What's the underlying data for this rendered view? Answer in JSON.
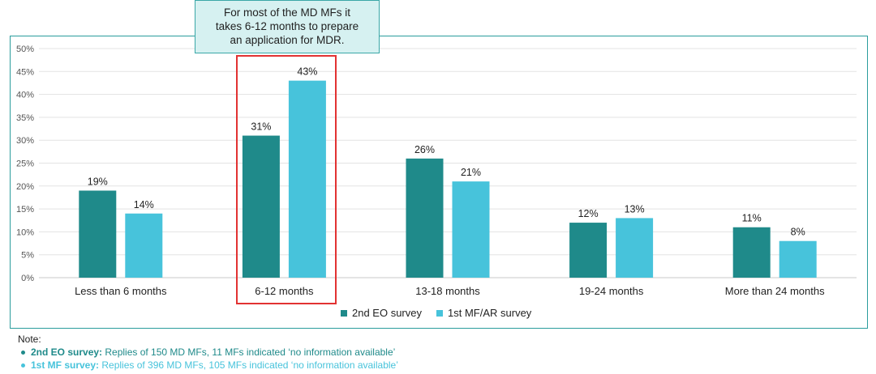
{
  "callout": {
    "line1": "For most of the MD MFs it",
    "line2": "takes 6-12 months to prepare",
    "line3": "an application for MDR."
  },
  "chart_data": {
    "type": "bar",
    "categories": [
      "Less than 6 months",
      "6-12 months",
      "13-18 months",
      "19-24 months",
      "More than 24 months"
    ],
    "series": [
      {
        "name": "2nd EO survey",
        "values": [
          19,
          31,
          26,
          12,
          11
        ],
        "labels": [
          "19%",
          "31%",
          "26%",
          "12%",
          "11%"
        ],
        "color": "#1f8a8a"
      },
      {
        "name": "1st MF/AR survey",
        "values": [
          14,
          43,
          21,
          13,
          8
        ],
        "labels": [
          "14%",
          "43%",
          "21%",
          "13%",
          "8%"
        ],
        "color": "#47c3db"
      }
    ],
    "yticks": [
      "0%",
      "5%",
      "10%",
      "15%",
      "20%",
      "25%",
      "30%",
      "35%",
      "40%",
      "45%",
      "50%"
    ],
    "ylim": [
      0,
      50
    ],
    "grid": true,
    "highlighted_category": "6-12 months",
    "legend": "bottom"
  },
  "note": {
    "title": "Note:",
    "lines": [
      {
        "label": "2nd EO survey:",
        "text": " Replies of 150 MD MFs, 11 MFs indicated ‘no information available’"
      },
      {
        "label": "1st MF survey:",
        "text": " Replies of 396 MD MFs, 105 MFs indicated ‘no information available’"
      }
    ]
  },
  "colors": {
    "dark": "#1f8a8a",
    "light": "#47c3db",
    "highlight": "#e23232"
  }
}
